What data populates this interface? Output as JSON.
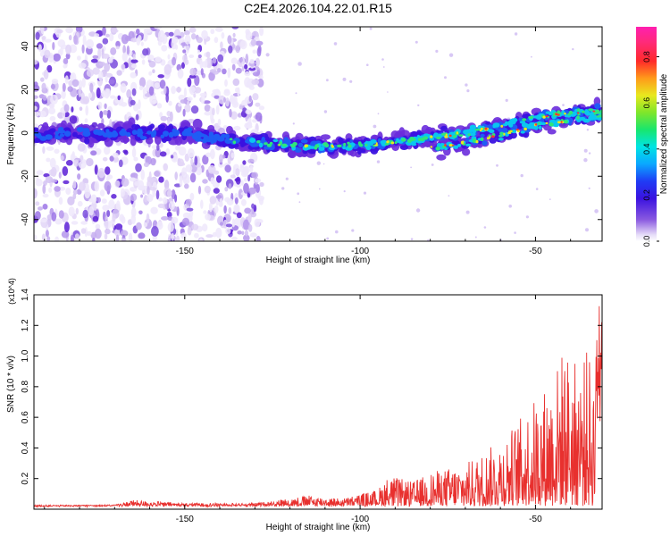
{
  "figure": {
    "title": "C2E4.2026.104.22.01.R15"
  },
  "colors": {
    "snr_line": "#e8302e",
    "spec_low": "#c9b5f2",
    "spec_mid": "#5a1fd6",
    "axis": "#000000"
  },
  "chart_data": [
    {
      "type": "heatmap",
      "title": "C2E4.2026.104.22.01.R15",
      "xlabel": "Height of straight line (km)",
      "ylabel": "Frequency (Hz)",
      "xlim": [
        -193,
        -31
      ],
      "ylim": [
        -50,
        49
      ],
      "xticks": [
        -150,
        -100,
        -50
      ],
      "xtick_labels": [
        "-150",
        "-100",
        "-50"
      ],
      "yticks": [
        40,
        20,
        0,
        -20,
        -40
      ],
      "ytick_labels": [
        "40",
        "20",
        "0",
        "-20",
        "-40"
      ],
      "colorbar": {
        "label": "Normalized spectral amplitude",
        "range": [
          0,
          0.93
        ],
        "ticks": [
          0.0,
          0.2,
          0.4,
          0.6,
          0.8
        ],
        "tick_labels": [
          "0.0",
          "0.2",
          "0.4",
          "0.6",
          "0.8"
        ],
        "colormap": "rainbow (white-violet-blue-cyan-green-yellow-red-magenta)"
      },
      "ridge": {
        "description": "main frequency ridge vs height",
        "x": [
          -190,
          -165,
          -150,
          -135,
          -125,
          -115,
          -100,
          -90,
          -80,
          -70,
          -60,
          -50,
          -40,
          -33
        ],
        "freq": [
          -1,
          0,
          0,
          -4,
          -5,
          -6,
          -6,
          -4,
          -2,
          0,
          3,
          7,
          9,
          10
        ]
      },
      "scatter_region": {
        "x_range": [
          -193,
          -128
        ],
        "note": "broad noisy background energy"
      }
    },
    {
      "type": "line",
      "xlabel": "Height of straight line (km)",
      "ylabel": "SNR (10 * v/v)",
      "y_multiplier": "(x10^4)",
      "xlim": [
        -193,
        -31
      ],
      "ylim": [
        0,
        1.4
      ],
      "xticks": [
        -150,
        -100,
        -50
      ],
      "xtick_labels": [
        "-150",
        "-100",
        "-50"
      ],
      "yticks": [
        0.2,
        0.4,
        0.6,
        0.8,
        1.0,
        1.2,
        1.4
      ],
      "ytick_labels": [
        "0.2",
        "0.4",
        "0.6",
        "0.8",
        "1.0",
        "1.2",
        "1.4"
      ],
      "envelope": {
        "description": "approximate upper envelope of the SNR trace (x10^4)",
        "x": [
          -193,
          -170,
          -165,
          -150,
          -130,
          -115,
          -105,
          -95,
          -92,
          -85,
          -80,
          -75,
          -70,
          -65,
          -60,
          -55,
          -50,
          -45,
          -42,
          -38,
          -35,
          -33,
          -32
        ],
        "y": [
          0.02,
          0.03,
          0.06,
          0.04,
          0.04,
          0.09,
          0.07,
          0.13,
          0.22,
          0.18,
          0.24,
          0.27,
          0.3,
          0.37,
          0.46,
          0.58,
          0.73,
          0.87,
          1.07,
          0.95,
          1.05,
          0.9,
          1.4
        ]
      }
    }
  ]
}
